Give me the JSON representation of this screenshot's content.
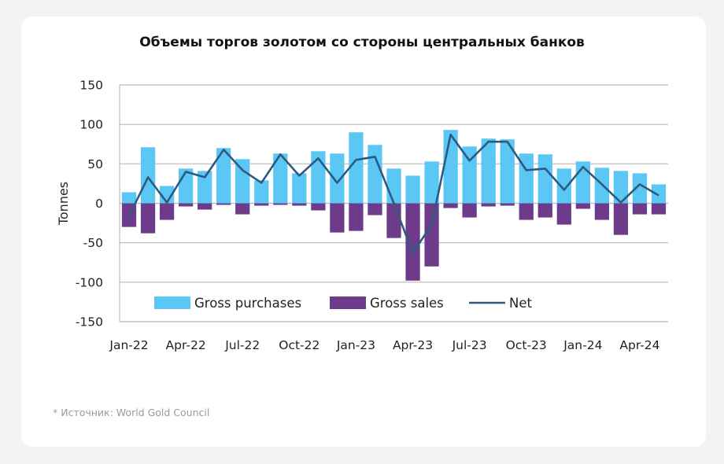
{
  "card": {
    "title": "Объемы торгов золотом со стороны центральных банков",
    "source": "* Источник: World Gold Council"
  },
  "chart_data": {
    "type": "bar",
    "title": "Объемы торгов золотом со стороны центральных банков",
    "ylabel": "Tonnes",
    "xlabel": "",
    "ylim": [
      -150,
      150
    ],
    "yticks": [
      150,
      100,
      50,
      0,
      -50,
      -100,
      -150
    ],
    "grid": true,
    "legend_position": "bottom-left",
    "x_tick_labels": [
      "Jan-22",
      "Apr-22",
      "Jul-22",
      "Oct-22",
      "Jan-23",
      "Apr-23",
      "Jul-23",
      "Oct-23",
      "Jan-24",
      "Apr-24"
    ],
    "categories": [
      "Jan-22",
      "Feb-22",
      "Mar-22",
      "Apr-22",
      "May-22",
      "Jun-22",
      "Jul-22",
      "Aug-22",
      "Sep-22",
      "Oct-22",
      "Nov-22",
      "Dec-22",
      "Jan-23",
      "Feb-23",
      "Mar-23",
      "Apr-23",
      "May-23",
      "Jun-23",
      "Jul-23",
      "Aug-23",
      "Sep-23",
      "Oct-23",
      "Nov-23",
      "Dec-23",
      "Jan-24",
      "Feb-24",
      "Mar-24",
      "Apr-24",
      "May-24"
    ],
    "series": [
      {
        "name": "Gross purchases",
        "type": "bar",
        "color": "#5bc7f5",
        "values": [
          14,
          71,
          22,
          44,
          41,
          70,
          56,
          29,
          63,
          38,
          66,
          63,
          90,
          74,
          44,
          35,
          53,
          93,
          72,
          82,
          81,
          63,
          62,
          44,
          53,
          45,
          41,
          38,
          24
        ]
      },
      {
        "name": "Gross sales",
        "type": "bar",
        "color": "#6e3b8b",
        "values": [
          -30,
          -38,
          -21,
          -4,
          -8,
          -2,
          -14,
          -3,
          -2,
          -3,
          -9,
          -37,
          -35,
          -15,
          -44,
          -98,
          -80,
          -6,
          -18,
          -4,
          -3,
          -21,
          -18,
          -27,
          -7,
          -21,
          -40,
          -14,
          -14
        ]
      },
      {
        "name": "Net",
        "type": "line",
        "color": "#2f5a80",
        "values": [
          -16,
          33,
          1,
          40,
          33,
          68,
          42,
          26,
          62,
          35,
          57,
          26,
          55,
          59,
          0,
          -63,
          -27,
          87,
          54,
          78,
          78,
          42,
          44,
          17,
          46,
          24,
          1,
          24,
          10
        ]
      }
    ]
  }
}
